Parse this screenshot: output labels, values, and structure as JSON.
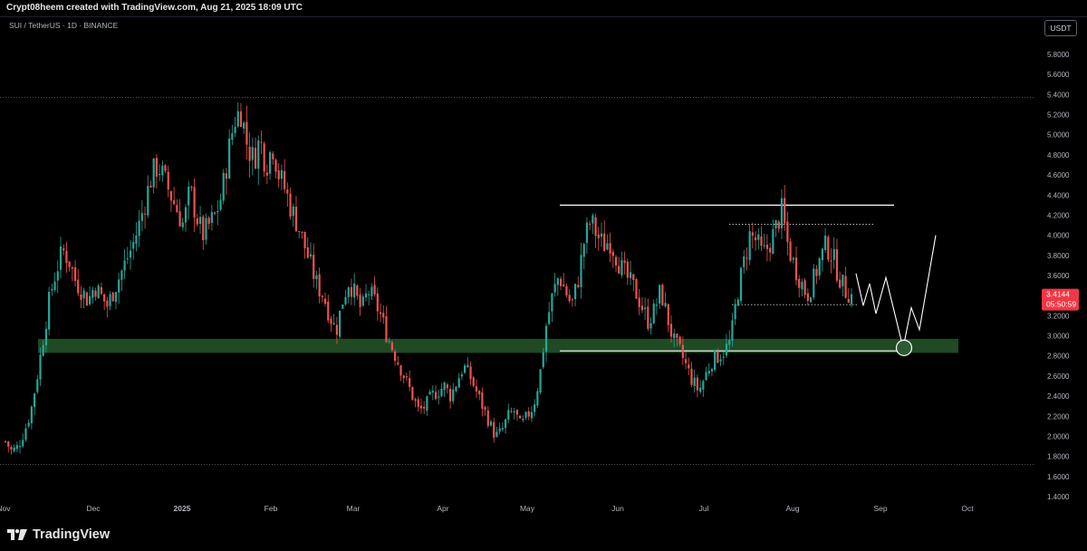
{
  "header": {
    "credit": "Crypt08heem created with TradingView.com, Aug 21, 2025 18:09 UTC"
  },
  "symbol": {
    "text": "SUI / TetherUS · 1D · BINANCE"
  },
  "currency": "USDT",
  "footer": {
    "brand": "TradingView"
  },
  "colors": {
    "up": "#26a69a",
    "down": "#ef5350",
    "zone": "#1f4a23",
    "line": "#ffffff",
    "last_price_bg": "#f23645",
    "axis_text": "#b2b5be"
  },
  "chart_data": {
    "type": "candlestick",
    "symbol": "SUI/USDT",
    "interval": "1D",
    "exchange": "BINANCE",
    "y_axis": {
      "ticks": [
        "5.8000",
        "5.6000",
        "5.4000",
        "5.2000",
        "5.0000",
        "4.8000",
        "4.6000",
        "4.4000",
        "4.2000",
        "4.0000",
        "3.8000",
        "3.6000",
        "3.4000",
        "3.2000",
        "3.0000",
        "2.8000",
        "2.6000",
        "2.4000",
        "2.2000",
        "2.0000",
        "1.8000",
        "1.6000",
        "1.4000"
      ],
      "ylim": [
        1.35,
        5.95
      ]
    },
    "x_axis": {
      "months": [
        "Nov",
        "Dec",
        "2025",
        "Feb",
        "Mar",
        "Apr",
        "May",
        "Jun",
        "Jul",
        "Aug",
        "Sep",
        "Oct"
      ]
    },
    "last_price": {
      "value": "3.4144",
      "countdown": "05:50:59"
    },
    "levels": {
      "ath_dotted": 5.37,
      "low_dotted": 1.72,
      "range_top": 4.3,
      "range_bottom": 2.85,
      "inner_top_dotted": 4.11,
      "inner_bottom_dotted": 3.31,
      "support_zone": [
        2.83,
        2.97
      ]
    },
    "projection": [
      3.62,
      3.3,
      3.52,
      3.22,
      3.58,
      2.88,
      3.28,
      3.06,
      4.0
    ],
    "target_circle": 2.88,
    "price_path": [
      1.95,
      1.85,
      1.9,
      2.05,
      2.25,
      2.6,
      3.0,
      3.4,
      3.65,
      3.85,
      3.75,
      3.55,
      3.45,
      3.35,
      3.5,
      3.4,
      3.3,
      3.45,
      3.6,
      3.75,
      3.9,
      4.1,
      4.35,
      4.6,
      4.7,
      4.55,
      4.4,
      4.25,
      4.1,
      4.45,
      4.2,
      4.0,
      4.1,
      4.2,
      4.4,
      4.8,
      5.15,
      5.25,
      4.9,
      4.75,
      4.95,
      4.7,
      4.9,
      4.6,
      4.45,
      4.25,
      4.1,
      3.9,
      3.7,
      3.5,
      3.4,
      3.2,
      3.05,
      3.35,
      3.55,
      3.4,
      3.25,
      3.45,
      3.35,
      3.2,
      3.0,
      2.85,
      2.7,
      2.55,
      2.4,
      2.25,
      2.3,
      2.4,
      2.45,
      2.5,
      2.4,
      2.55,
      2.7,
      2.6,
      2.45,
      2.3,
      2.15,
      2.0,
      2.05,
      2.2,
      2.25,
      2.1,
      2.2,
      2.3,
      2.6,
      3.1,
      3.4,
      3.6,
      3.45,
      3.3,
      3.55,
      3.95,
      4.15,
      4.0,
      3.9,
      3.95,
      3.8,
      3.65,
      3.55,
      3.45,
      3.3,
      3.15,
      3.25,
      3.45,
      3.2,
      2.95,
      2.85,
      2.7,
      2.55,
      2.45,
      2.6,
      2.75,
      2.8,
      2.85,
      2.95,
      3.4,
      3.7,
      4.0,
      3.95,
      3.8,
      3.9,
      4.05,
      4.25,
      3.9,
      3.7,
      3.55,
      3.4,
      3.55,
      3.75,
      3.9,
      3.8,
      3.6,
      3.45,
      3.41
    ]
  }
}
